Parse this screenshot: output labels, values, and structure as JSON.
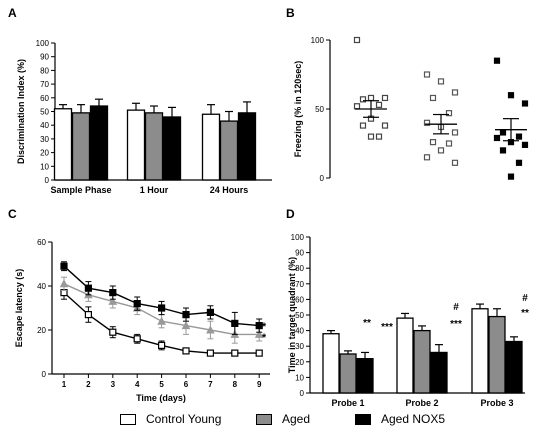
{
  "chart_data": [
    {
      "panel": "A",
      "type": "bar",
      "ylabel": "Discrimination Index (%)",
      "ylim": [
        0,
        100
      ],
      "yticks": [
        0,
        10,
        20,
        30,
        40,
        50,
        60,
        70,
        80,
        90,
        100
      ],
      "categories": [
        "Sample Phase",
        "1 Hour",
        "24 Hours"
      ],
      "series": [
        {
          "name": "Control Young",
          "values": [
            52,
            51,
            48
          ],
          "errors": [
            3,
            5,
            7
          ]
        },
        {
          "name": "Aged",
          "values": [
            49,
            49,
            43
          ],
          "errors": [
            6,
            5,
            7
          ]
        },
        {
          "name": "Aged NOX5",
          "values": [
            54,
            46,
            49
          ],
          "errors": [
            5,
            7,
            8
          ]
        }
      ]
    },
    {
      "panel": "B",
      "type": "scatter",
      "ylabel": "Freezing (% in 120sec)",
      "ylim": [
        0,
        100
      ],
      "yticks": [
        0,
        50,
        100
      ],
      "series": [
        {
          "name": "Control Young",
          "values": [
            100,
            58,
            58,
            57,
            53,
            52,
            43,
            38,
            38,
            30,
            30
          ],
          "mean": 50,
          "sem": 6
        },
        {
          "name": "Aged",
          "values": [
            75,
            70,
            62,
            58,
            47,
            40,
            37,
            33,
            26,
            25,
            20,
            15,
            11
          ],
          "mean": 39,
          "sem": 7
        },
        {
          "name": "Aged NOX5",
          "values": [
            85,
            60,
            54,
            33,
            30,
            29,
            26,
            24,
            20,
            11,
            1
          ],
          "mean": 35,
          "sem": 8
        }
      ]
    },
    {
      "panel": "C",
      "type": "line",
      "xlabel": "Time (days)",
      "ylabel": "Escape latency (s)",
      "ylim": [
        0,
        60
      ],
      "yticks": [
        0,
        20,
        40,
        60
      ],
      "x": [
        1,
        2,
        3,
        4,
        5,
        6,
        7,
        8,
        9
      ],
      "series": [
        {
          "name": "Control Young",
          "values": [
            37,
            27,
            19,
            16,
            13,
            10.5,
            9.5,
            9.5,
            9.5
          ],
          "errors": [
            3,
            3.5,
            2.5,
            2,
            2,
            1,
            0.5,
            0.5,
            0.5
          ]
        },
        {
          "name": "Aged",
          "values": [
            41,
            36,
            33,
            30,
            24,
            22,
            20,
            18,
            18
          ],
          "errors": [
            3,
            3,
            3,
            3,
            3,
            4,
            4,
            4,
            3
          ]
        },
        {
          "name": "Aged NOX5",
          "values": [
            49,
            39,
            37,
            32,
            30,
            27,
            28,
            23,
            22
          ],
          "errors": [
            2,
            3,
            3,
            3,
            3,
            3,
            3,
            5,
            3
          ]
        }
      ],
      "annotations": [
        "*",
        "*"
      ]
    },
    {
      "panel": "D",
      "type": "bar",
      "ylabel": "Time in target quadrant (%)",
      "ylim": [
        0,
        100
      ],
      "yticks": [
        0,
        10,
        20,
        30,
        40,
        50,
        60,
        70,
        80,
        90,
        100
      ],
      "categories": [
        "Probe 1",
        "Probe 2",
        "Probe 3"
      ],
      "series": [
        {
          "name": "Control Young",
          "values": [
            38,
            48,
            54
          ],
          "errors": [
            2,
            3,
            3
          ]
        },
        {
          "name": "Aged",
          "values": [
            25,
            40,
            49
          ],
          "errors": [
            2,
            3,
            5
          ]
        },
        {
          "name": "Aged NOX5",
          "values": [
            22,
            26,
            33
          ],
          "errors": [
            4,
            5,
            3
          ]
        }
      ],
      "annotations": [
        "**",
        "***",
        "#",
        "***",
        "#",
        "**"
      ]
    }
  ],
  "panel_letters": [
    "A",
    "B",
    "C",
    "D"
  ],
  "legend": {
    "items": [
      {
        "label": "Control Young",
        "color": "#ffffff"
      },
      {
        "label": "Aged",
        "color": "#8c8c8c"
      },
      {
        "label": "Aged NOX5",
        "color": "#000000"
      }
    ]
  },
  "colors": {
    "control": "#ffffff",
    "aged": "#8c8c8c",
    "nox5": "#000000",
    "aged_line": "#999999"
  }
}
